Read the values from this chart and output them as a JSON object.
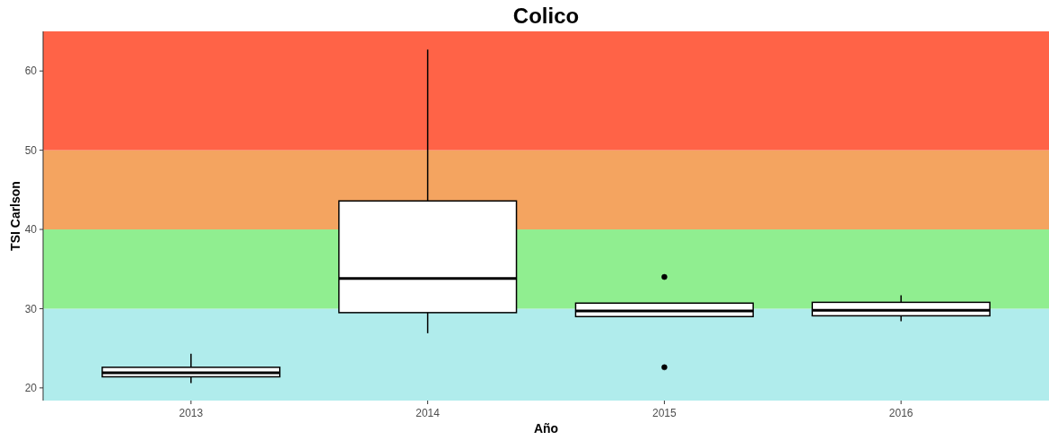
{
  "chart_data": {
    "type": "box",
    "title": "Colico",
    "xlabel": "Año",
    "ylabel": "TSI Carlson",
    "categories": [
      "2013",
      "2014",
      "2015",
      "2016"
    ],
    "boxes": [
      {
        "low": 20.6,
        "q1": 21.4,
        "median": 21.9,
        "q3": 22.6,
        "high": 24.3
      },
      {
        "low": 26.9,
        "q1": 29.5,
        "median": 33.8,
        "q3": 43.6,
        "high": 62.7
      },
      {
        "low": 29.0,
        "q1": 29.0,
        "median": 29.7,
        "q3": 30.7,
        "high": 30.7,
        "outliers": [
          34.0,
          22.6
        ]
      },
      {
        "low": 28.4,
        "q1": 29.1,
        "median": 29.8,
        "q3": 30.8,
        "high": 31.7
      }
    ],
    "color": "#ffffff",
    "ylim": [
      18.4,
      65
    ],
    "yticks": [
      20,
      30,
      40,
      50,
      60
    ],
    "bands": [
      {
        "axis": "y",
        "from": 18.4,
        "to": 30,
        "color": "#b0ecec"
      },
      {
        "axis": "y",
        "from": 30,
        "to": 40,
        "color": "#90ee90"
      },
      {
        "axis": "y",
        "from": 40,
        "to": 50,
        "color": "#f4a460"
      },
      {
        "axis": "y",
        "from": 50,
        "to": 65,
        "color": "#ff6347"
      }
    ],
    "grid": false
  }
}
